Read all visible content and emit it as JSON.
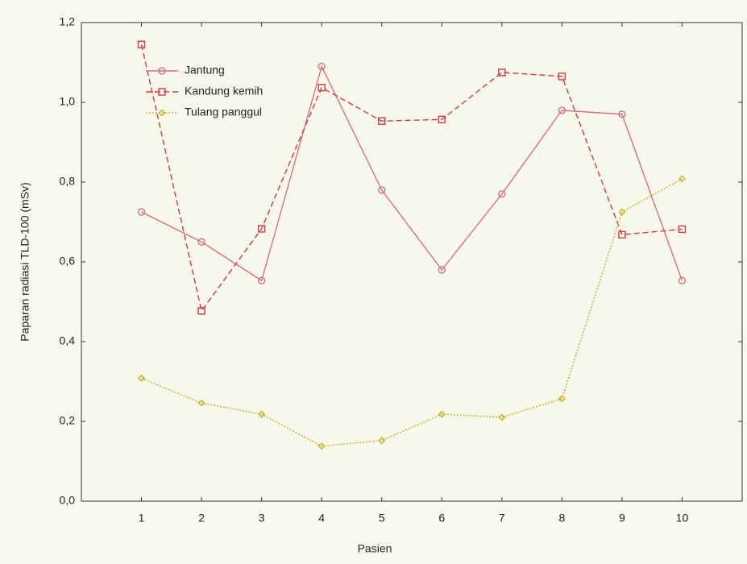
{
  "chart_data": {
    "type": "line",
    "xlabel": "Pasien",
    "ylabel": "Paparan radiasi TLD-100 (mSv)",
    "x": [
      1,
      2,
      3,
      4,
      5,
      6,
      7,
      8,
      9,
      10
    ],
    "xlim": [
      0,
      11
    ],
    "xticks": [
      1,
      2,
      3,
      4,
      5,
      6,
      7,
      8,
      9,
      10
    ],
    "ylim": [
      0,
      1.2
    ],
    "yticks": [
      {
        "value": 0,
        "label": "0,0"
      },
      {
        "value": 0.2,
        "label": "0,2"
      },
      {
        "value": 0.4,
        "label": "0,4"
      },
      {
        "value": 0.6,
        "label": "0,6"
      },
      {
        "value": 0.8,
        "label": "0,8"
      },
      {
        "value": 1.0,
        "label": "1,0"
      },
      {
        "value": 1.2,
        "label": "1,2"
      }
    ],
    "grid": false,
    "legend": "upper left",
    "series": [
      {
        "name": "Jantung",
        "color": "#d9707f",
        "line_style": "solid",
        "marker": "circle",
        "values": [
          0.725,
          0.65,
          0.553,
          1.09,
          0.78,
          0.58,
          0.77,
          0.98,
          0.97,
          0.553
        ]
      },
      {
        "name": "Kandung kemih",
        "color": "#d63a3f",
        "line_style": "dashed",
        "marker": "square",
        "values": [
          1.145,
          0.477,
          0.683,
          1.037,
          0.953,
          0.957,
          1.075,
          1.065,
          0.668,
          0.682
        ]
      },
      {
        "name": "Tulang panggul",
        "color": "#c9b020",
        "line_style": "dotted",
        "marker": "diamond",
        "values": [
          0.308,
          0.246,
          0.218,
          0.138,
          0.152,
          0.218,
          0.21,
          0.257,
          0.725,
          0.808
        ]
      }
    ]
  }
}
